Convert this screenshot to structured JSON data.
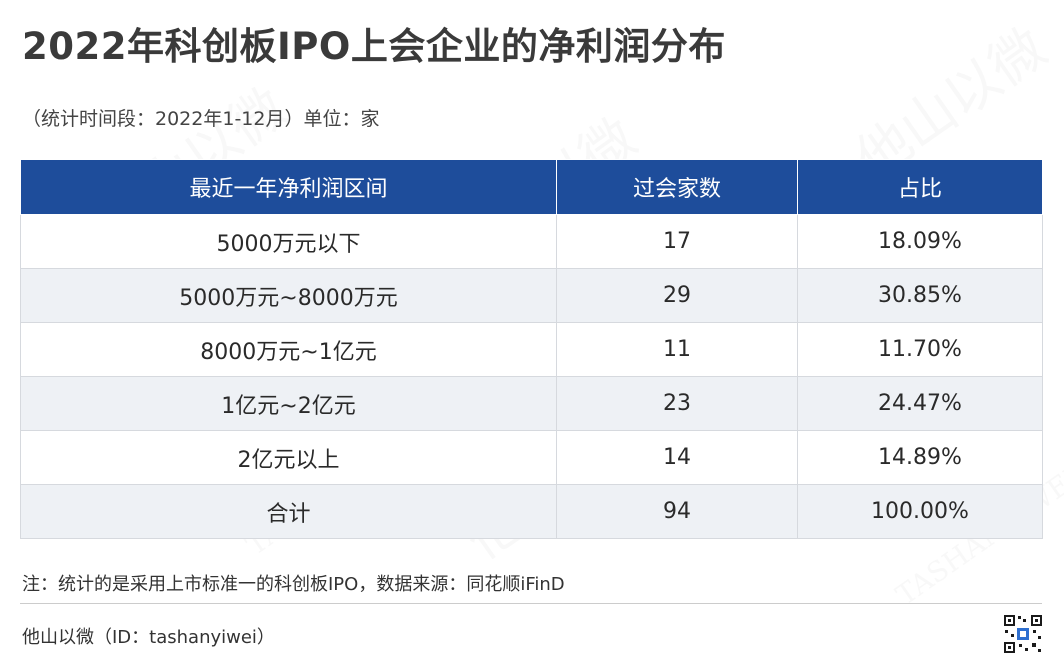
{
  "title": "2022年科创板IPO上会企业的净利润分布",
  "subtitle": "（统计时间段：2022年1-12月）单位：家",
  "table": {
    "headers": [
      "最近一年净利润区间",
      "过会家数",
      "占比"
    ],
    "rows": [
      {
        "range": "5000万元以下",
        "count": "17",
        "ratio": "18.09%"
      },
      {
        "range": "5000万元~8000万元",
        "count": "29",
        "ratio": "30.85%"
      },
      {
        "range": "8000万元~1亿元",
        "count": "11",
        "ratio": "11.70%"
      },
      {
        "range": "1亿元~2亿元",
        "count": "23",
        "ratio": "24.47%"
      },
      {
        "range": "2亿元以上",
        "count": "14",
        "ratio": "14.89%"
      },
      {
        "range": "合计",
        "count": "94",
        "ratio": "100.00%"
      }
    ]
  },
  "note": "注：统计的是采用上市标准一的科创板IPO，数据来源：同花顺iFinD",
  "footer": "他山以微（ID：tashanyiwei）",
  "watermark": {
    "text": "他山以微",
    "latin": "TASHANYIWEI"
  },
  "colors": {
    "header_bg": "#1e4d9b",
    "header_text": "#ffffff",
    "row_alt_bg": "#eef1f5",
    "border": "#d6d9de"
  }
}
